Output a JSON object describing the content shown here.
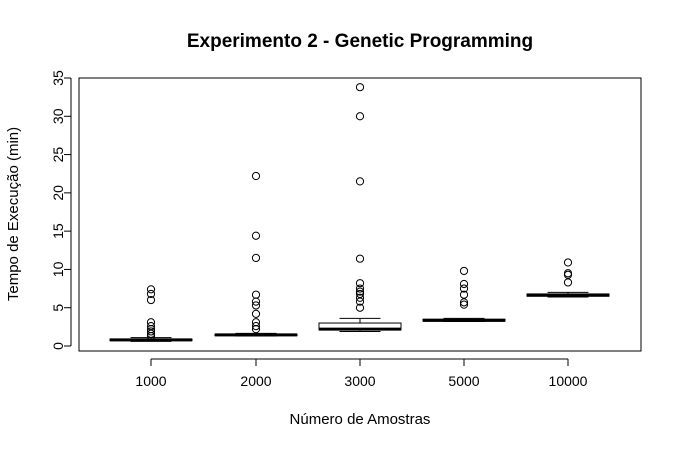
{
  "chart_data": {
    "type": "boxplot",
    "title": "Experimento 2 - Genetic Programming",
    "xlabel": "Número de Amostras",
    "ylabel": "Tempo de Execução (min)",
    "ylim": [
      0,
      35
    ],
    "yticks": [
      0,
      5,
      10,
      15,
      20,
      25,
      30,
      35
    ],
    "categories": [
      "1000",
      "2000",
      "3000",
      "5000",
      "10000"
    ],
    "boxes": [
      {
        "category": "1000",
        "whisker_low": 0.6,
        "q1": 0.7,
        "median": 0.8,
        "q3": 0.9,
        "whisker_high": 1.1,
        "outliers": [
          7.4,
          6.8,
          6.0,
          3.1,
          2.6,
          2.2,
          1.9,
          1.6,
          1.3
        ]
      },
      {
        "category": "2000",
        "whisker_low": 1.3,
        "q1": 1.35,
        "median": 1.45,
        "q3": 1.55,
        "whisker_high": 1.65,
        "outliers": [
          22.2,
          14.4,
          11.5,
          6.7,
          5.8,
          5.3,
          4.2,
          3.1,
          2.6,
          2.2
        ]
      },
      {
        "category": "3000",
        "whisker_low": 1.9,
        "q1": 2.1,
        "median": 2.2,
        "q3": 3.0,
        "whisker_high": 3.6,
        "outliers": [
          33.8,
          30.0,
          21.5,
          11.4,
          8.2,
          7.5,
          7.1,
          6.8,
          6.3,
          5.8,
          5.0
        ]
      },
      {
        "category": "5000",
        "whisker_low": 3.2,
        "q1": 3.25,
        "median": 3.35,
        "q3": 3.5,
        "whisker_high": 3.6,
        "outliers": [
          9.8,
          8.1,
          7.5,
          6.7,
          5.7,
          5.4
        ]
      },
      {
        "category": "10000",
        "whisker_low": 6.4,
        "q1": 6.5,
        "median": 6.65,
        "q3": 6.8,
        "whisker_high": 7.0,
        "outliers": [
          10.9,
          9.5,
          9.3,
          8.3
        ]
      }
    ]
  }
}
